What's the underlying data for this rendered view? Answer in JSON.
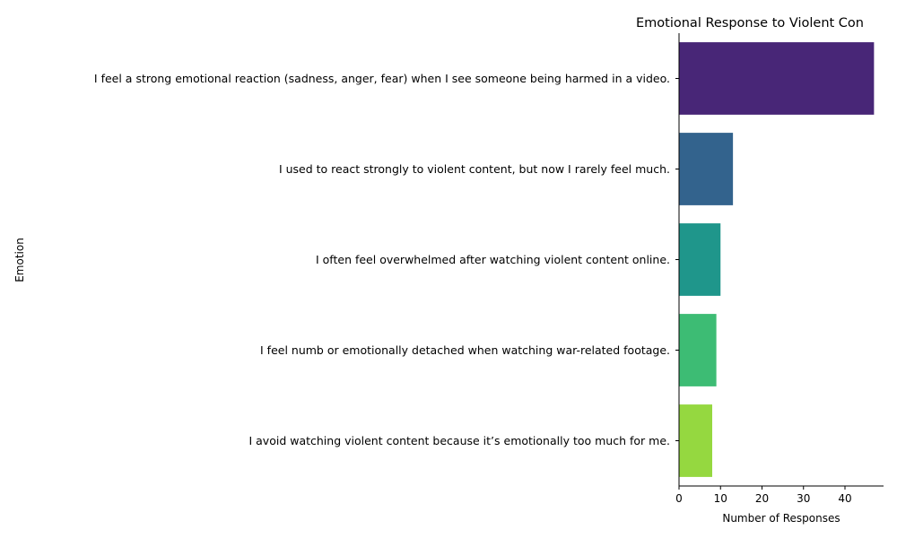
{
  "chart_data": {
    "type": "bar",
    "orientation": "horizontal",
    "title": "Emotional Response to Violent Con",
    "xlabel": "Number of Responses",
    "ylabel": "Emotion",
    "xlim": [
      0,
      49.3
    ],
    "xticks": [
      0,
      10,
      20,
      30,
      40
    ],
    "grid": false,
    "categories": [
      "I feel a strong emotional reaction (sadness, anger, fear) when I see someone being harmed in a video.",
      "I used to react strongly to violent content, but now I rarely feel much.",
      "I often feel overwhelmed after watching violent content online.",
      "I feel numb or emotionally detached when watching war-related footage.",
      "I avoid watching violent content because it’s emotionally too much for me."
    ],
    "values": [
      47,
      13,
      10,
      9,
      8
    ],
    "colors": [
      "#482677",
      "#33638d",
      "#1f968b",
      "#3dbc74",
      "#95d840"
    ]
  }
}
